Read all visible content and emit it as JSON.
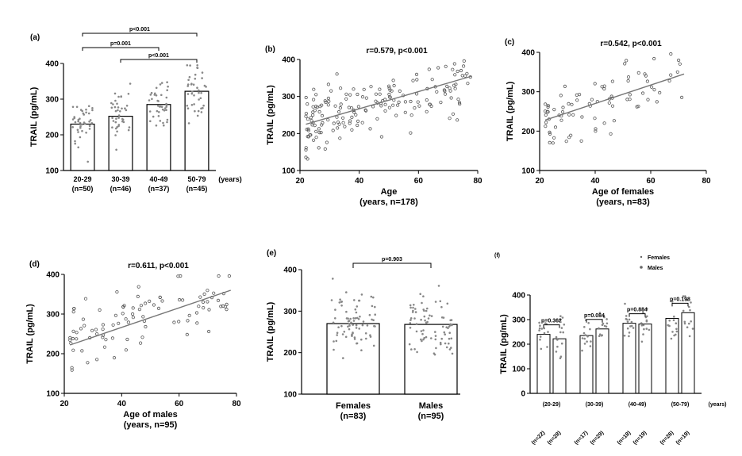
{
  "chart_data": [
    {
      "id": "a",
      "type": "bar",
      "panel_label": "(a)",
      "ylabel": "TRAIL (pg/mL)",
      "ylim": [
        100,
        400
      ],
      "yticks": [
        100,
        200,
        300,
        400
      ],
      "unit_label": "(years)",
      "categories": [
        {
          "group": "20-29",
          "n": "(n=50)"
        },
        {
          "group": "30-39",
          "n": "(n=46)"
        },
        {
          "group": "40-49",
          "n": "(n=37)"
        },
        {
          "group": "50-79",
          "n": "(n=45)"
        }
      ],
      "values": [
        230,
        252,
        285,
        322
      ],
      "comparisons": [
        {
          "from": 0,
          "to": 3,
          "text": "p<0.001"
        },
        {
          "from": 0,
          "to": 2,
          "text": "p=0.001"
        },
        {
          "from": 1,
          "to": 3,
          "text": "p<0.001"
        }
      ]
    },
    {
      "id": "b",
      "type": "scatter",
      "panel_label": "(b)",
      "stat": "r=0.579, p<0.001",
      "ylabel": "TRAIL (pg/mL)",
      "xlabel": "Age",
      "xlabel2": "(years, n=178)",
      "xlim": [
        20,
        80
      ],
      "ylim": [
        100,
        400
      ],
      "xticks": [
        20,
        40,
        60,
        80
      ],
      "yticks": [
        100,
        200,
        300,
        400
      ],
      "n": 178,
      "fit": {
        "x": [
          22,
          78
        ],
        "y": [
          225,
          355
        ]
      }
    },
    {
      "id": "c",
      "type": "scatter",
      "panel_label": "(c)",
      "stat": "r=0.542, p<0.001",
      "ylabel": "TRAIL (pg/mL)",
      "xlabel": "Age of females",
      "xlabel2": "(years, n=83)",
      "xlim": [
        20,
        80
      ],
      "ylim": [
        100,
        400
      ],
      "xticks": [
        20,
        40,
        60,
        80
      ],
      "yticks": [
        100,
        200,
        300,
        400
      ],
      "n": 83,
      "fit": {
        "x": [
          22,
          72
        ],
        "y": [
          228,
          345
        ]
      }
    },
    {
      "id": "d",
      "type": "scatter",
      "panel_label": "(d)",
      "stat": "r=0.611, p<0.001",
      "ylabel": "TRAIL (pg/mL)",
      "xlabel": "Age of males",
      "xlabel2": "(years, n=95)",
      "xlim": [
        20,
        80
      ],
      "ylim": [
        100,
        400
      ],
      "xticks": [
        20,
        40,
        60,
        80
      ],
      "yticks": [
        100,
        200,
        300,
        400
      ],
      "n": 95,
      "fit": {
        "x": [
          22,
          78
        ],
        "y": [
          222,
          360
        ]
      }
    },
    {
      "id": "e",
      "type": "bar",
      "panel_label": "(e)",
      "ylabel": "TRAIL (pg/mL)",
      "ylim": [
        100,
        400
      ],
      "yticks": [
        100,
        200,
        300,
        400
      ],
      "categories": [
        {
          "group": "Females",
          "n": "(n=83)"
        },
        {
          "group": "Males",
          "n": "(n=95)"
        }
      ],
      "values": [
        270,
        268
      ],
      "comparisons": [
        {
          "from": 0,
          "to": 1,
          "text": "p=0.903"
        }
      ]
    },
    {
      "id": "f",
      "type": "bar",
      "panel_label": "(f)",
      "ylabel": "TRAIL (pg/mL)",
      "ylim": [
        0,
        400
      ],
      "yticks": [
        0,
        100,
        200,
        300,
        400
      ],
      "unit_label": "(years)",
      "legend": [
        "Females",
        "Males"
      ],
      "groups": [
        "(20-29)",
        "(30-39)",
        "(40-49)",
        "(50-79)"
      ],
      "n_labels": [
        "(n=22)",
        "(n=28)",
        "(n=17)",
        "(n=29)",
        "(n=18)",
        "(n=19)",
        "(n=26)",
        "(n=19)"
      ],
      "series": [
        {
          "name": "Females",
          "values": [
            240,
            235,
            285,
            305
          ]
        },
        {
          "name": "Males",
          "values": [
            222,
            262,
            282,
            328
          ]
        }
      ],
      "comparisons": [
        {
          "group": 0,
          "text": "p=0.362"
        },
        {
          "group": 1,
          "text": "p=0.084"
        },
        {
          "group": 2,
          "text": "p=0.884"
        },
        {
          "group": 3,
          "text": "p=0.198"
        }
      ]
    }
  ]
}
